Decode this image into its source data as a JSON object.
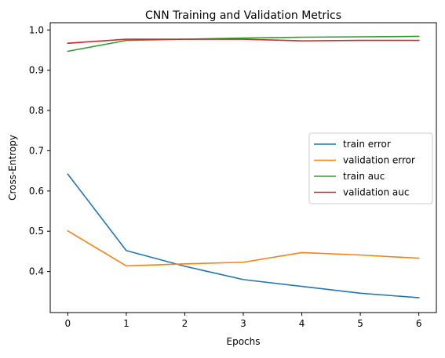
{
  "chart_data": {
    "type": "line",
    "title": "CNN Training and Validation Metrics",
    "xlabel": "Epochs",
    "ylabel": "Cross-Entropy",
    "x": [
      0,
      1,
      2,
      3,
      4,
      5,
      6
    ],
    "xlim": [
      -0.3,
      6.3
    ],
    "ylim": [
      0.298,
      1.018
    ],
    "xticks": [
      0,
      1,
      2,
      3,
      4,
      5,
      6
    ],
    "yticks": [
      0.4,
      0.5,
      0.6,
      0.7,
      0.8,
      0.9,
      1.0
    ],
    "ytick_labels": [
      "0.4",
      "0.5",
      "0.6",
      "0.7",
      "0.8",
      "0.9",
      "1.0"
    ],
    "grid": false,
    "legend_position": "center-right",
    "series": [
      {
        "name": "train error",
        "color": "#1f77b4",
        "values": [
          0.642,
          0.452,
          0.413,
          0.38,
          0.363,
          0.346,
          0.335
        ]
      },
      {
        "name": "validation error",
        "color": "#ff7f0e",
        "values": [
          0.501,
          0.414,
          0.419,
          0.423,
          0.447,
          0.441,
          0.433
        ]
      },
      {
        "name": "train auc",
        "color": "#2ca02c",
        "values": [
          0.947,
          0.974,
          0.977,
          0.98,
          0.982,
          0.983,
          0.984
        ]
      },
      {
        "name": "validation auc",
        "color": "#d62728",
        "values": [
          0.967,
          0.977,
          0.977,
          0.977,
          0.973,
          0.974,
          0.974
        ]
      }
    ]
  }
}
